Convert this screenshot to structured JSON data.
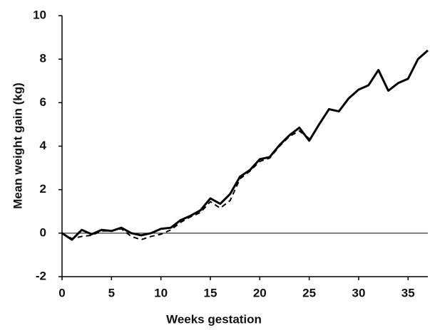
{
  "chart_data": {
    "type": "line",
    "x_label": "Weeks gestation",
    "y_label": "Mean weight gain (kg)",
    "x": [
      0,
      1,
      2,
      3,
      4,
      5,
      6,
      7,
      8,
      9,
      10,
      11,
      12,
      13,
      14,
      15,
      16,
      17,
      18,
      19,
      20,
      21,
      22,
      23,
      24,
      25,
      26,
      27,
      28,
      29,
      30,
      31,
      32,
      33,
      34,
      35,
      36,
      37
    ],
    "series": [
      {
        "color": "#000000",
        "dash": false,
        "values": [
          0,
          -0.3,
          0.15,
          -0.05,
          0.15,
          0.1,
          0.25,
          0,
          -0.1,
          0,
          0.2,
          0.25,
          0.6,
          0.8,
          1.05,
          1.6,
          1.35,
          1.8,
          2.6,
          2.9,
          3.4,
          3.5,
          4.05,
          4.5,
          4.85,
          4.25,
          5.0,
          5.7,
          5.6,
          6.2,
          6.6,
          6.8,
          7.5,
          6.55,
          6.9,
          7.1,
          8.0,
          8.4
        ]
      },
      {
        "color": "#000000",
        "dash": true,
        "values": [
          0,
          -0.25,
          -0.15,
          -0.1,
          0.1,
          0.1,
          0.2,
          -0.15,
          -0.3,
          -0.15,
          -0.05,
          0.15,
          0.5,
          0.75,
          0.95,
          1.45,
          1.15,
          1.5,
          2.5,
          2.85,
          3.3,
          3.45,
          4.0,
          4.45,
          4.7,
          4.35,
          null,
          null,
          null,
          null,
          null,
          null,
          null,
          null,
          null,
          null,
          null,
          null
        ]
      }
    ],
    "xlim": [
      0,
      37
    ],
    "xticks": [
      0,
      5,
      10,
      15,
      20,
      25,
      30,
      35
    ],
    "ylim": [
      -2,
      10
    ],
    "yticks": [
      -2,
      0,
      2,
      4,
      6,
      8,
      10
    ],
    "zero_line": true
  }
}
